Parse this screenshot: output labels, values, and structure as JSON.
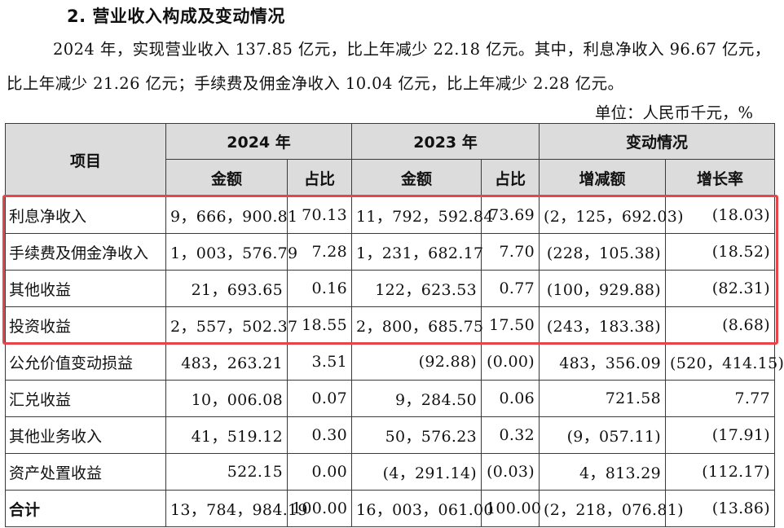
{
  "section": {
    "heading": "2. 营业收入构成及变动情况",
    "paragraph_line1": "2024 年，实现营业收入 137.85 亿元，比上年减少 22.18 亿元。其中，利息净收入 96.67 亿元，",
    "paragraph_line2": "比上年减少 21.26 亿元；手续费及佣金净收入 10.04 亿元，比上年减少 2.28 亿元。",
    "unit_note": "单位：人民币千元，%"
  },
  "table": {
    "header": {
      "item": "项目",
      "year_2024": "2024 年",
      "year_2023": "2023 年",
      "change": "变动情况",
      "amount": "金额",
      "share": "占比",
      "change_amount": "增减额",
      "growth_rate": "增长率"
    },
    "rows": [
      {
        "name": "利息净收入",
        "amt2024": "9，666，900.81",
        "pct2024": "70.13",
        "amt2023": "11，792，592.84",
        "pct2023": "73.69",
        "delta": "(2，125，692.03)",
        "rate": "(18.03)"
      },
      {
        "name": "手续费及佣金净收入",
        "amt2024": "1，003，576.79",
        "pct2024": "7.28",
        "amt2023": "1，231，682.17",
        "pct2023": "7.70",
        "delta": "(228，105.38)",
        "rate": "(18.52)"
      },
      {
        "name": "其他收益",
        "amt2024": "21，693.65",
        "pct2024": "0.16",
        "amt2023": "122，623.53",
        "pct2023": "0.77",
        "delta": "(100，929.88)",
        "rate": "(82.31)"
      },
      {
        "name": "投资收益",
        "amt2024": "2，557，502.37",
        "pct2024": "18.55",
        "amt2023": "2，800，685.75",
        "pct2023": "17.50",
        "delta": "(243，183.38)",
        "rate": "(8.68)"
      },
      {
        "name": "公允价值变动损益",
        "amt2024": "483，263.21",
        "pct2024": "3.51",
        "amt2023": "(92.88)",
        "pct2023": "(0.00)",
        "delta": "483，356.09",
        "rate": "(520，414.15)"
      },
      {
        "name": "汇兑收益",
        "amt2024": "10，006.08",
        "pct2024": "0.07",
        "amt2023": "9，284.50",
        "pct2023": "0.06",
        "delta": "721.58",
        "rate": "7.77"
      },
      {
        "name": "其他业务收入",
        "amt2024": "41，519.12",
        "pct2024": "0.30",
        "amt2023": "50，576.23",
        "pct2023": "0.32",
        "delta": "(9，057.11)",
        "rate": "(17.91)"
      },
      {
        "name": "资产处置收益",
        "amt2024": "522.15",
        "pct2024": "0.00",
        "amt2023": "(4，291.14)",
        "pct2023": "(0.03)",
        "delta": "4，813.29",
        "rate": "(112.17)"
      }
    ],
    "total": {
      "name": "合计",
      "amt2024": "13，784，984.19",
      "pct2024": "100.00",
      "amt2023": "16，003，061.00",
      "pct2023": "100.00",
      "delta": "(2，218，076.81)",
      "rate": "(13.86)"
    }
  },
  "colors": {
    "highlight_border": "#e8454b",
    "header_background": "#dcdcdc"
  }
}
